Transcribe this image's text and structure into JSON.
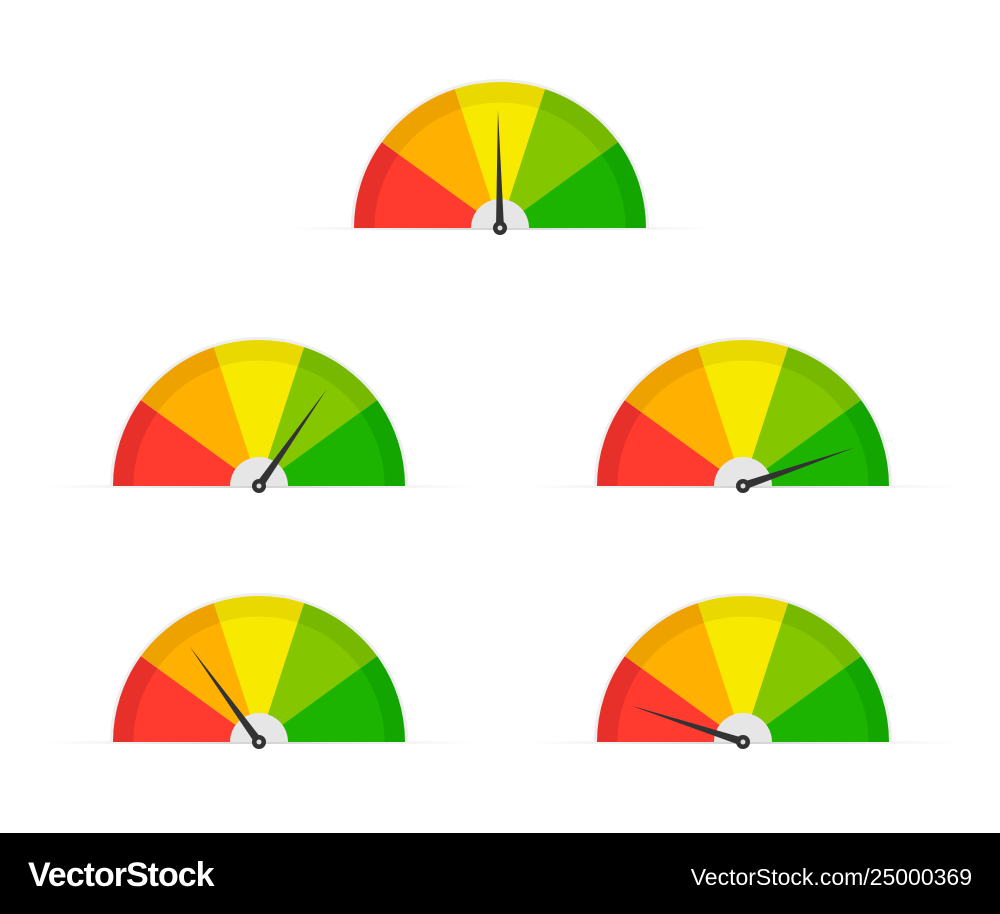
{
  "watermark": {
    "brand": "VectorStock",
    "id": "VectorStock.com/25000369"
  }
}
